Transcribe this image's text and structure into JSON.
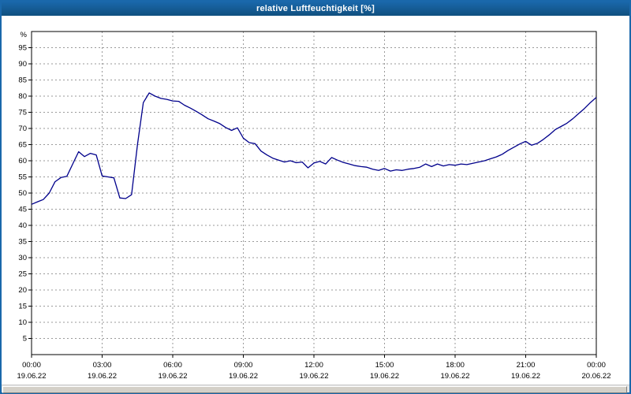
{
  "window": {
    "title": "relative Luftfeuchtigkeit [%]"
  },
  "theme": {
    "titlebar_blue": "#1a68ab",
    "border_blue": "#1a68ab",
    "grid_color": "#9a9a9a",
    "footer_gray": "#d4d0c8"
  },
  "chart_data": {
    "type": "line",
    "title": "relative Luftfeuchtigkeit [%]",
    "series_name": "relative Luftfeuchtigkeit",
    "ylabel": "%",
    "xlabel": "",
    "ylim": [
      0,
      100
    ],
    "yticks": [
      5,
      10,
      15,
      20,
      25,
      30,
      35,
      40,
      45,
      50,
      55,
      60,
      65,
      70,
      75,
      80,
      85,
      90,
      95
    ],
    "grid": true,
    "legend": "none",
    "line_color": "#00008b",
    "xticks": [
      {
        "hour": 0,
        "time": "00:00",
        "date": "19.06.22"
      },
      {
        "hour": 3,
        "time": "03:00",
        "date": "19.06.22"
      },
      {
        "hour": 6,
        "time": "06:00",
        "date": "19.06.22"
      },
      {
        "hour": 9,
        "time": "09:00",
        "date": "19.06.22"
      },
      {
        "hour": 12,
        "time": "12:00",
        "date": "19.06.22"
      },
      {
        "hour": 15,
        "time": "15:00",
        "date": "19.06.22"
      },
      {
        "hour": 18,
        "time": "18:00",
        "date": "19.06.22"
      },
      {
        "hour": 21,
        "time": "21:00",
        "date": "19.06.22"
      },
      {
        "hour": 24,
        "time": "00:00",
        "date": "20.06.22"
      }
    ],
    "x_hours": [
      0,
      0.25,
      0.5,
      0.75,
      1,
      1.25,
      1.5,
      1.75,
      2,
      2.25,
      2.5,
      2.75,
      3,
      3.25,
      3.5,
      3.75,
      4,
      4.25,
      4.5,
      4.75,
      5,
      5.25,
      5.5,
      5.75,
      6,
      6.25,
      6.5,
      6.75,
      7,
      7.25,
      7.5,
      7.75,
      8,
      8.25,
      8.5,
      8.75,
      9,
      9.25,
      9.5,
      9.75,
      10,
      10.25,
      10.5,
      10.75,
      11,
      11.25,
      11.5,
      11.75,
      12,
      12.25,
      12.5,
      12.75,
      13,
      13.25,
      13.5,
      13.75,
      14,
      14.25,
      14.5,
      14.75,
      15,
      15.25,
      15.5,
      15.75,
      16,
      16.25,
      16.5,
      16.75,
      17,
      17.25,
      17.5,
      17.75,
      18,
      18.25,
      18.5,
      18.75,
      19,
      19.25,
      19.5,
      19.75,
      20,
      20.25,
      20.5,
      20.75,
      21,
      21.25,
      21.5,
      21.75,
      22,
      22.25,
      22.5,
      22.75,
      23,
      23.25,
      23.5,
      23.75,
      24
    ],
    "values": [
      46.5,
      47.3,
      48.0,
      50.0,
      53.5,
      54.8,
      55.2,
      59.0,
      62.8,
      61.3,
      62.3,
      61.8,
      55.3,
      55.0,
      54.7,
      48.5,
      48.3,
      49.5,
      65.0,
      78.0,
      81.0,
      80.0,
      79.3,
      79.0,
      78.5,
      78.4,
      77.2,
      76.3,
      75.3,
      74.2,
      73.0,
      72.3,
      71.5,
      70.3,
      69.4,
      70.2,
      67.0,
      65.6,
      65.3,
      63.0,
      61.8,
      60.8,
      60.2,
      59.6,
      60.0,
      59.4,
      59.6,
      57.8,
      59.3,
      59.8,
      59.0,
      61.0,
      60.2,
      59.5,
      59.0,
      58.5,
      58.2,
      58.0,
      57.4,
      57.0,
      57.6,
      56.8,
      57.2,
      57.0,
      57.4,
      57.6,
      58.0,
      59.0,
      58.2,
      59.0,
      58.4,
      58.8,
      58.6,
      59.0,
      58.8,
      59.2,
      59.6,
      60.0,
      60.6,
      61.2,
      62.0,
      63.2,
      64.2,
      65.2,
      66.0,
      64.8,
      65.4,
      66.6,
      68.0,
      69.6,
      70.6,
      71.6,
      73.0,
      74.6,
      76.2,
      78.0,
      79.6
    ]
  }
}
